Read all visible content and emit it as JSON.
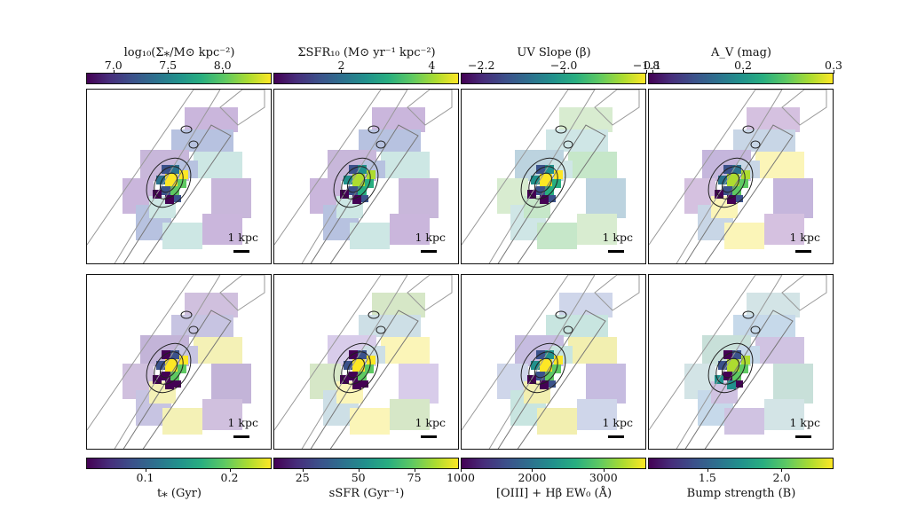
{
  "figure": {
    "top_colorbars": [
      {
        "label": "log₁₀(Σ⁎/M⊙ kpc⁻²)",
        "ticks": [
          "7.0",
          "7.5",
          "8.0"
        ],
        "tick_values": [
          7.0,
          7.5,
          8.0
        ],
        "range": [
          6.75,
          8.45
        ]
      },
      {
        "label": "ΣSFR₁₀ (M⊙ yr⁻¹ kpc⁻²)",
        "ticks": [
          "2",
          "4"
        ],
        "tick_values": [
          2,
          4
        ],
        "range": [
          0.5,
          4.6
        ]
      },
      {
        "label": "UV Slope (β)",
        "ticks": [
          "−2.2",
          "−2.0",
          "−1.8"
        ],
        "tick_values": [
          -2.2,
          -2.0,
          -1.8
        ],
        "range": [
          -2.25,
          -1.8
        ]
      },
      {
        "label": "A_V (mag)",
        "ticks": [
          "0.1",
          "0.2",
          "0.3"
        ],
        "tick_values": [
          0.1,
          0.2,
          0.3
        ],
        "range": [
          0.095,
          0.3
        ]
      }
    ],
    "bottom_colorbars": [
      {
        "label": "t⁎ (Gyr)",
        "ticks": [
          "0.1",
          "0.2"
        ],
        "tick_values": [
          0.1,
          0.2
        ],
        "range": [
          0.03,
          0.25
        ]
      },
      {
        "label": "sSFR (Gyr⁻¹)",
        "ticks": [
          "25",
          "50",
          "75"
        ],
        "tick_values": [
          25,
          50,
          75
        ],
        "range": [
          12,
          95
        ]
      },
      {
        "label": "[OIII] + Hβ EW₀ (Å)",
        "ticks": [
          "1000",
          "2000",
          "3000"
        ],
        "tick_values": [
          1000,
          2000,
          3000
        ],
        "range": [
          1000,
          3600
        ]
      },
      {
        "label": "Bump strength (B)",
        "ticks": [
          "1.5",
          "2.0"
        ],
        "tick_values": [
          1.5,
          2.0
        ],
        "range": [
          1.1,
          2.35
        ]
      }
    ],
    "scale_bar_label": "1 kpc",
    "colors": {
      "viridis_dark": "#440154",
      "viridis_mid": "#21918c",
      "viridis_bright": "#fde725"
    }
  }
}
